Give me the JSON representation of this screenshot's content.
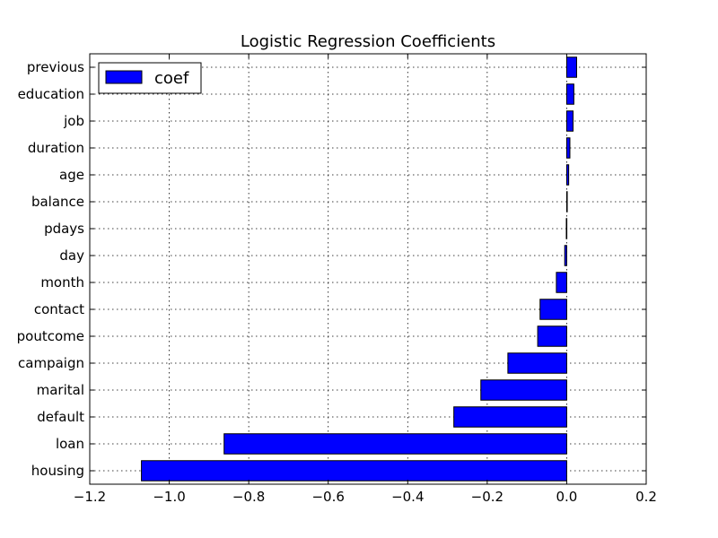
{
  "chart_data": {
    "type": "bar",
    "orientation": "horizontal",
    "title": "Logistic Regression Coefficients",
    "xlabel": "",
    "ylabel": "",
    "xlim": [
      -1.2,
      0.2
    ],
    "xticks": [
      -1.2,
      -1.0,
      -0.8,
      -0.6,
      -0.4,
      -0.2,
      0.0,
      0.2
    ],
    "xtick_labels": [
      "−1.2",
      "−1.0",
      "−0.8",
      "−0.6",
      "−0.4",
      "−0.2",
      "0.0",
      "0.2"
    ],
    "categories": [
      "housing",
      "loan",
      "default",
      "marital",
      "campaign",
      "poutcome",
      "contact",
      "month",
      "day",
      "pdays",
      "balance",
      "age",
      "duration",
      "job",
      "education",
      "previous"
    ],
    "series": [
      {
        "name": "coef",
        "color": "#0000ff",
        "values": [
          -1.07,
          -0.862,
          -0.284,
          -0.216,
          -0.148,
          -0.073,
          -0.067,
          -0.026,
          -0.005,
          -0.001,
          0.0005,
          0.005,
          0.008,
          0.016,
          0.018,
          0.025
        ]
      }
    ],
    "grid": true,
    "legend_position": "top-left"
  }
}
